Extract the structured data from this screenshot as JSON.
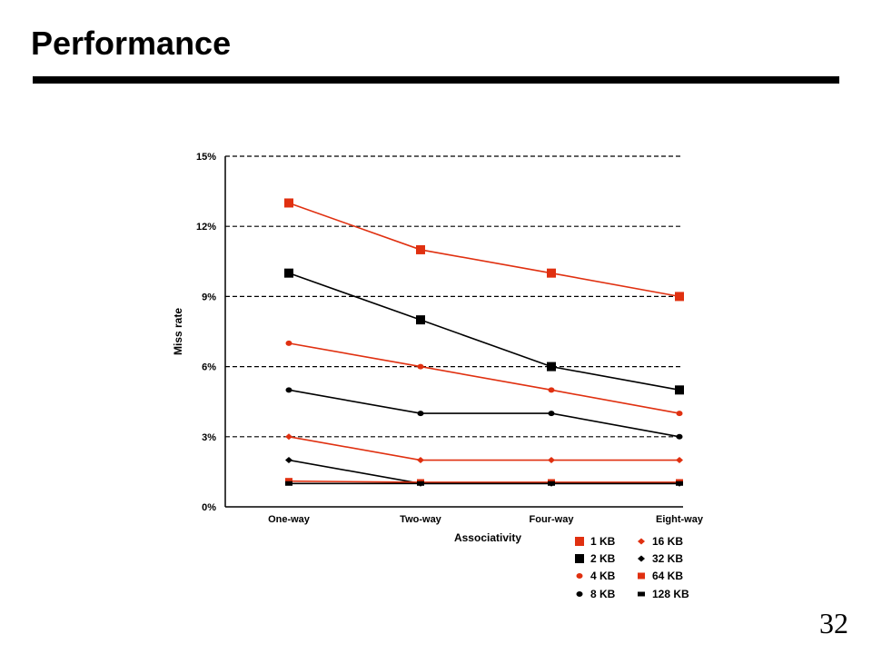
{
  "slide": {
    "title": "Performance",
    "page_number": "32"
  },
  "chart_data": {
    "type": "line",
    "title": "",
    "xlabel": "Associativity",
    "ylabel": "Miss rate",
    "categories": [
      "One-way",
      "Two-way",
      "Four-way",
      "Eight-way"
    ],
    "y_ticks": [
      "0%",
      "3%",
      "6%",
      "9%",
      "12%",
      "15%"
    ],
    "ylim": [
      0,
      15
    ],
    "grid": "horizontal-dashed",
    "legend_position": "bottom-right",
    "series": [
      {
        "name": "1 KB",
        "values": [
          13,
          11,
          10,
          9
        ],
        "color": "#e03010",
        "marker": "square-large"
      },
      {
        "name": "2 KB",
        "values": [
          10,
          8,
          6,
          5
        ],
        "color": "#000000",
        "marker": "square-large"
      },
      {
        "name": "4 KB",
        "values": [
          7,
          6,
          5,
          4
        ],
        "color": "#e03010",
        "marker": "dot"
      },
      {
        "name": "8 KB",
        "values": [
          5,
          4,
          4,
          3
        ],
        "color": "#000000",
        "marker": "dot"
      },
      {
        "name": "16 KB",
        "values": [
          3,
          2,
          2,
          2
        ],
        "color": "#e03010",
        "marker": "diamond"
      },
      {
        "name": "32 KB",
        "values": [
          2,
          1,
          1,
          1
        ],
        "color": "#000000",
        "marker": "diamond"
      },
      {
        "name": "64 KB",
        "values": [
          1.1,
          1.05,
          1.05,
          1.05
        ],
        "color": "#e03010",
        "marker": "square-small"
      },
      {
        "name": "128 KB",
        "values": [
          1,
          1,
          1,
          1
        ],
        "color": "#000000",
        "marker": "bar-small"
      }
    ]
  }
}
